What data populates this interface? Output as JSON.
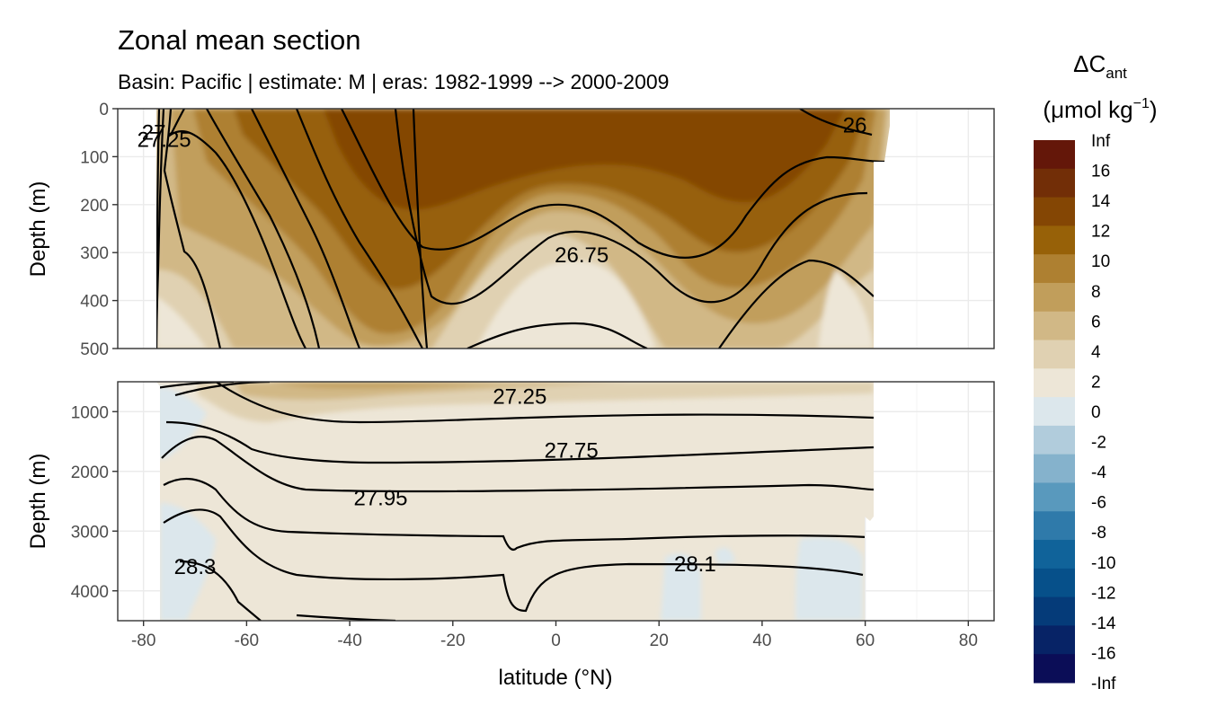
{
  "chart_data": {
    "type": "heatmap",
    "title": "Zonal mean section",
    "subtitle": "Basin: Pacific | estimate: M  | eras: 1982-1999 --> 2000-2009",
    "xlabel": "latitude (°N)",
    "ylabel": "Depth (m)",
    "legend": {
      "title_main": "ΔC",
      "title_sub": "ant",
      "units_open": "(μmol kg",
      "units_sup": "−1",
      "units_close": ")",
      "placement": "right",
      "labels": [
        "Inf",
        "16",
        "14",
        "12",
        "10",
        "8",
        "6",
        "4",
        "2",
        "0",
        "-2",
        "-4",
        "-6",
        "-8",
        "-10",
        "-12",
        "-14",
        "-16",
        "-Inf"
      ],
      "colors": [
        "#641709",
        "#722e07",
        "#844604",
        "#976108",
        "#ae8031",
        "#c19e5b",
        "#d1b886",
        "#e0d1b2",
        "#ede6d7",
        "#dce7ec",
        "#b1ccdc",
        "#85b2cc",
        "#5999bd",
        "#2f7aaa",
        "#10639a",
        "#06508a",
        "#053b79",
        "#072366",
        "#0b0d57"
      ]
    },
    "x_ticks": [
      "-80",
      "-60",
      "-40",
      "-20",
      "0",
      "20",
      "40",
      "60",
      "80"
    ],
    "xlim": [
      -85,
      85
    ],
    "panels": [
      {
        "name": "upper",
        "ylim": [
          0,
          500
        ],
        "y_ticks": [
          "0",
          "100",
          "200",
          "300",
          "400",
          "500"
        ]
      },
      {
        "name": "lower",
        "ylim": [
          500,
          4500
        ],
        "y_ticks": [
          "1000",
          "2000",
          "3000",
          "4000"
        ]
      }
    ],
    "contour_labels": [
      {
        "panel": "upper",
        "text": "27",
        "lat": -78,
        "depth": 50
      },
      {
        "panel": "upper",
        "text": "27.25",
        "lat": -76,
        "depth": 65
      },
      {
        "panel": "upper",
        "text": "26",
        "lat": 58,
        "depth": 35
      },
      {
        "panel": "upper",
        "text": "26.75",
        "lat": 5,
        "depth": 305
      },
      {
        "panel": "lower",
        "text": "27.25",
        "lat": -7,
        "depth": 750
      },
      {
        "panel": "lower",
        "text": "27.75",
        "lat": 3,
        "depth": 1650
      },
      {
        "panel": "lower",
        "text": "27.95",
        "lat": -34,
        "depth": 2450
      },
      {
        "panel": "lower",
        "text": "28.3",
        "lat": -70,
        "depth": 3600
      },
      {
        "panel": "lower",
        "text": "28.1",
        "lat": 27,
        "depth": 3550
      }
    ]
  }
}
